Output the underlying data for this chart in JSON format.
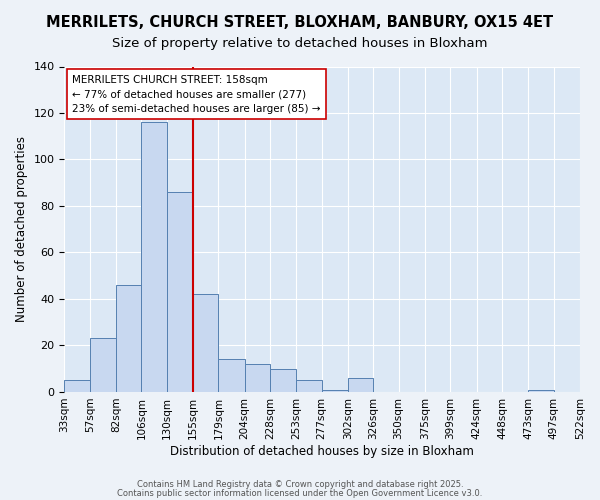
{
  "title": "MERRILETS, CHURCH STREET, BLOXHAM, BANBURY, OX15 4ET",
  "subtitle": "Size of property relative to detached houses in Bloxham",
  "xlabel": "Distribution of detached houses by size in Bloxham",
  "ylabel": "Number of detached properties",
  "bin_labels": [
    "33sqm",
    "57sqm",
    "82sqm",
    "106sqm",
    "130sqm",
    "155sqm",
    "179sqm",
    "204sqm",
    "228sqm",
    "253sqm",
    "277sqm",
    "302sqm",
    "326sqm",
    "350sqm",
    "375sqm",
    "399sqm",
    "424sqm",
    "448sqm",
    "473sqm",
    "497sqm",
    "522sqm"
  ],
  "bin_edges": [
    33,
    57,
    82,
    106,
    130,
    155,
    179,
    204,
    228,
    253,
    277,
    302,
    326,
    350,
    375,
    399,
    424,
    448,
    473,
    497,
    522
  ],
  "bar_heights": [
    5,
    23,
    46,
    116,
    86,
    42,
    14,
    12,
    10,
    5,
    1,
    6,
    0,
    0,
    0,
    0,
    0,
    0,
    1,
    0
  ],
  "bar_color": "#c8d8f0",
  "bar_edge_color": "#5580b0",
  "vline_x": 155,
  "vline_color": "#cc0000",
  "ylim": [
    0,
    140
  ],
  "yticks": [
    0,
    20,
    40,
    60,
    80,
    100,
    120,
    140
  ],
  "annotation_title": "MERRILETS CHURCH STREET: 158sqm",
  "annotation_line1": "← 77% of detached houses are smaller (277)",
  "annotation_line2": "23% of semi-detached houses are larger (85) →",
  "bg_color": "#edf2f8",
  "plot_bg_color": "#dce8f5",
  "footer1": "Contains HM Land Registry data © Crown copyright and database right 2025.",
  "footer2": "Contains public sector information licensed under the Open Government Licence v3.0.",
  "title_fontsize": 10.5,
  "subtitle_fontsize": 9.5,
  "axis_label_fontsize": 8.5,
  "tick_fontsize": 7.5,
  "annot_fontsize": 7.5
}
